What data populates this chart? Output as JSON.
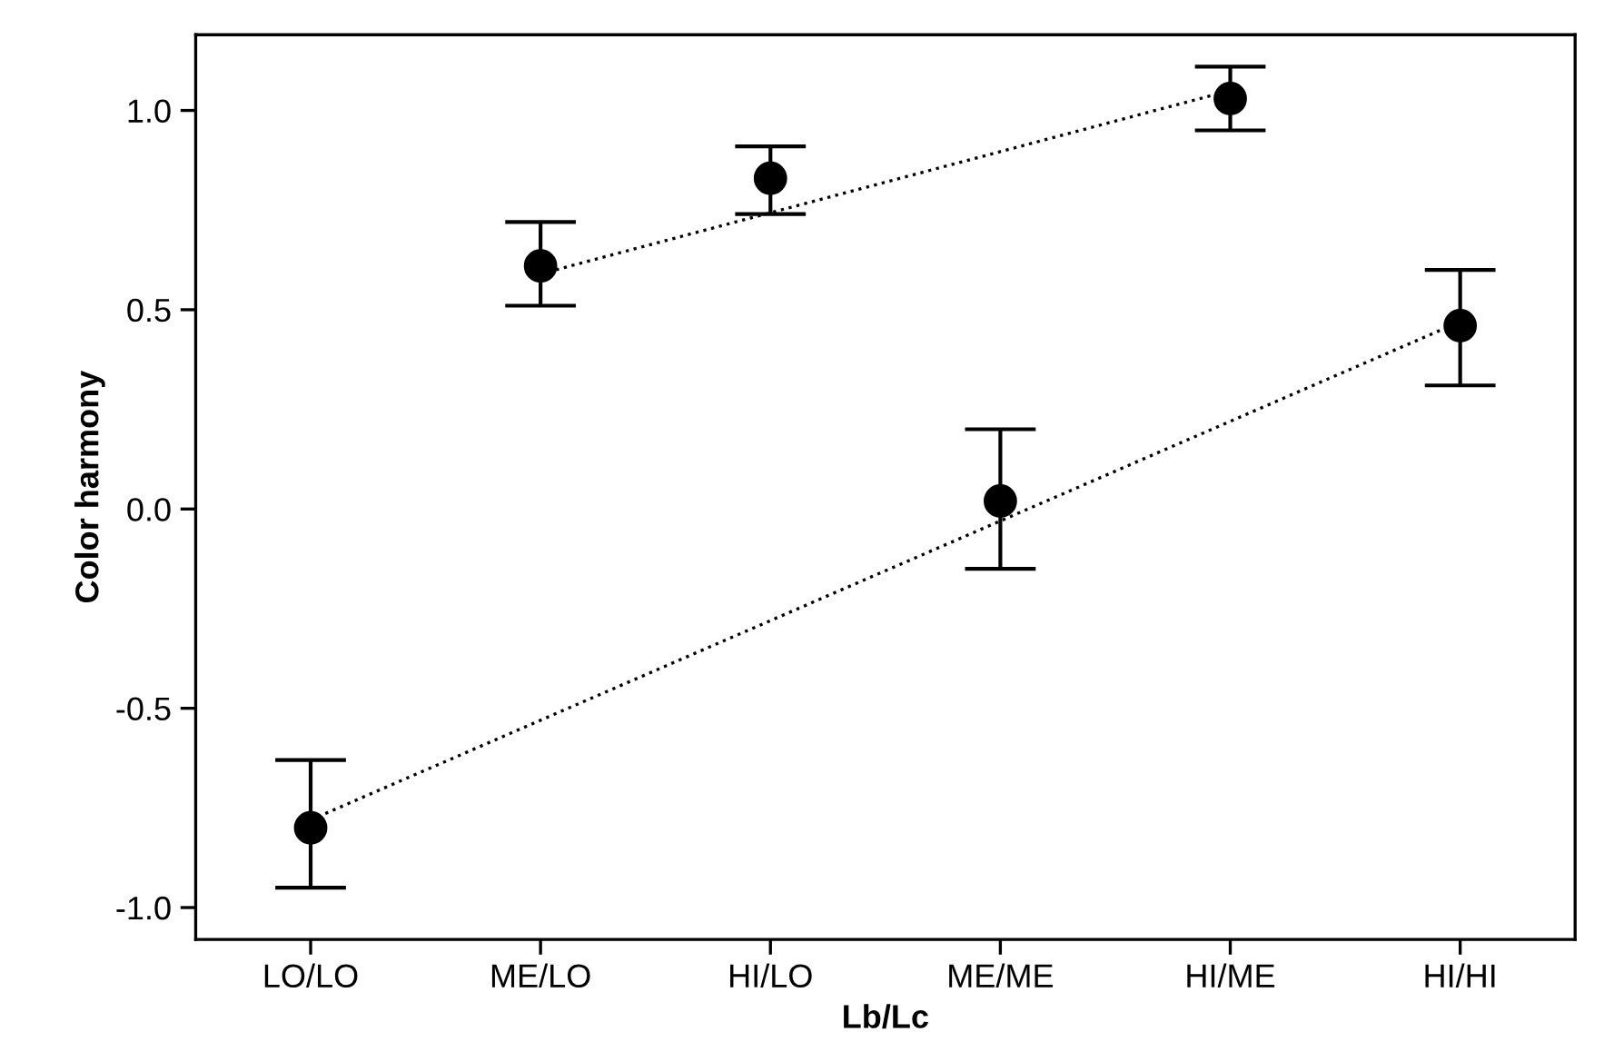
{
  "chart_data": {
    "type": "scatter",
    "xlabel": "Lb/Lc",
    "ylabel": "Color harmony",
    "categories": [
      "LO/LO",
      "ME/LO",
      "HI/LO",
      "ME/ME",
      "HI/ME",
      "HI/HI"
    ],
    "ylim": [
      -1.08,
      1.19
    ],
    "yticks": [
      {
        "value": -1.0,
        "label": "-1.0"
      },
      {
        "value": -0.5,
        "label": "-0.5"
      },
      {
        "value": 0.0,
        "label": "0.0"
      },
      {
        "value": 0.5,
        "label": "0.5"
      },
      {
        "value": 1.0,
        "label": "1.0"
      }
    ],
    "grid": false,
    "legend": false,
    "series": [
      {
        "color": "#000000",
        "marker": "circle",
        "values": [
          -0.8,
          0.61,
          0.83,
          0.02,
          1.03,
          0.46
        ],
        "errors": [
          [
            -0.95,
            -0.63
          ],
          [
            0.51,
            0.72
          ],
          [
            0.74,
            0.91
          ],
          [
            -0.15,
            0.2
          ],
          [
            0.95,
            1.11
          ],
          [
            0.31,
            0.6
          ]
        ]
      },
      {
        "type": "line",
        "color": "#000000",
        "line_style": "dotted",
        "marker": "none",
        "x": [
          "ME/LO",
          "HI/ME"
        ],
        "values": [
          0.59,
          1.05
        ]
      },
      {
        "type": "line",
        "color": "#000000",
        "line_style": "dotted",
        "marker": "none",
        "x": [
          "LO/LO",
          "HI/HI"
        ],
        "values": [
          -0.78,
          0.47
        ]
      }
    ]
  }
}
